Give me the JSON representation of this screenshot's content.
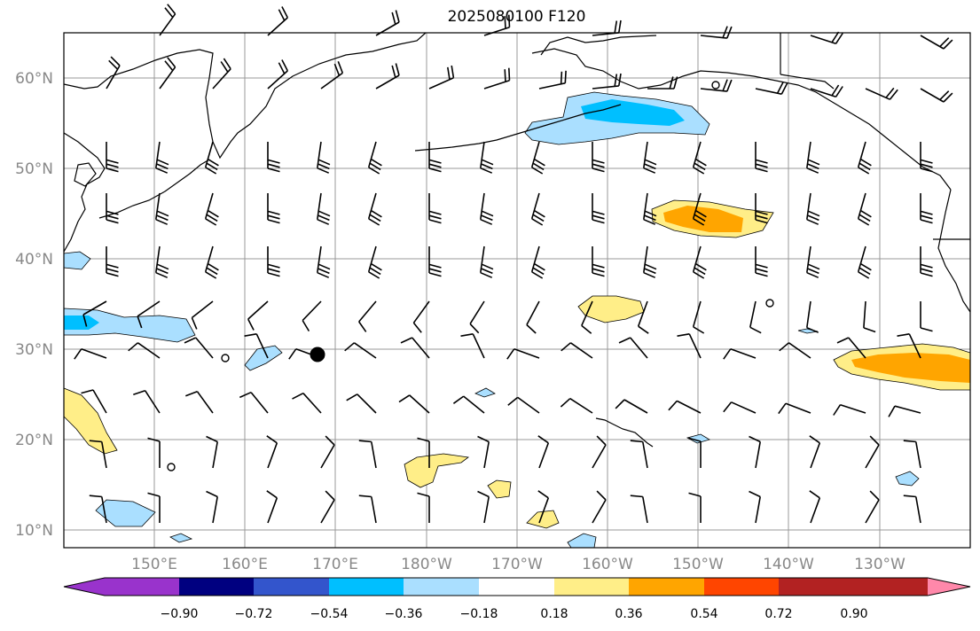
{
  "title": "2025080100 F120",
  "axes": {
    "lat_labels": [
      "10°N",
      "20°N",
      "30°N",
      "40°N",
      "50°N",
      "60°N"
    ],
    "lon_labels": [
      "150°E",
      "160°E",
      "170°E",
      "180°W",
      "170°W",
      "160°W",
      "150°W",
      "140°W",
      "130°W"
    ]
  },
  "colorbar": {
    "labels": [
      "−0.90",
      "−0.72",
      "−0.54",
      "−0.36",
      "−0.18",
      "0.18",
      "0.36",
      "0.54",
      "0.72",
      "0.90"
    ],
    "colors": [
      "#9933cc",
      "#000080",
      "#3355cc",
      "#00bfff",
      "#aadfff",
      "#ffffff",
      "#ffee88",
      "#ffa500",
      "#ff4500",
      "#b22222",
      "#ff88aa"
    ]
  },
  "colors": {
    "frame": "#000000",
    "grid": "#999999",
    "coast": "#000000",
    "label_gray": "#888888"
  },
  "map": {
    "projection": "PlateCarree",
    "lon_range": [
      140,
      240
    ],
    "lat_range": [
      8,
      65
    ],
    "grid_lons": [
      150,
      160,
      170,
      180,
      190,
      200,
      210,
      220,
      230
    ],
    "grid_lats": [
      10,
      20,
      30,
      40,
      50,
      60
    ]
  }
}
